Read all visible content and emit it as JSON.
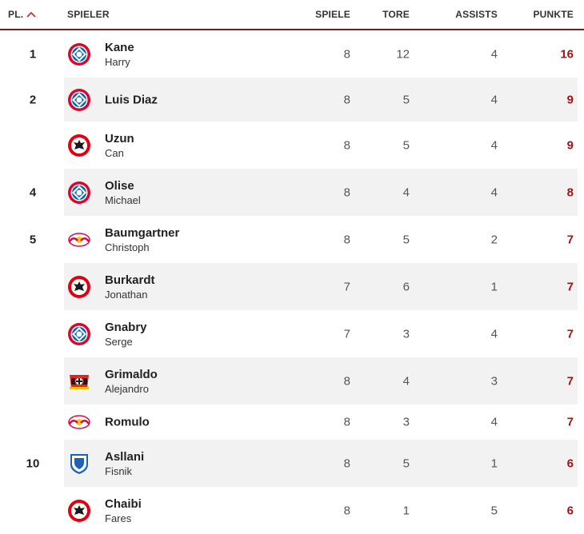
{
  "header": {
    "rank": "PL.",
    "player": "SPIELER",
    "games": "SPIELE",
    "goals": "TORE",
    "assists": "ASSISTS",
    "points": "PUNKTE"
  },
  "colors": {
    "accent": "#7a1b1b",
    "points": "#a31313",
    "fcb_red": "#dc052d",
    "fcb_blue": "#0066b2",
    "sge_red": "#e1000f",
    "rbl_red": "#dd0741",
    "b04_red": "#e32221",
    "tsg_blue": "#1c63b7"
  },
  "rows": [
    {
      "rank": "1",
      "last": "Kane",
      "first": "Harry",
      "club_icon": "fc-bayern-logo-icon",
      "games": "8",
      "goals": "12",
      "assists": "4",
      "points": "16"
    },
    {
      "rank": "2",
      "last": "Luis Diaz",
      "first": "",
      "club_icon": "fc-bayern-logo-icon",
      "games": "8",
      "goals": "5",
      "assists": "4",
      "points": "9"
    },
    {
      "rank": "",
      "last": "Uzun",
      "first": "Can",
      "club_icon": "eintracht-frankfurt-logo-icon",
      "games": "8",
      "goals": "5",
      "assists": "4",
      "points": "9"
    },
    {
      "rank": "4",
      "last": "Olise",
      "first": "Michael",
      "club_icon": "fc-bayern-logo-icon",
      "games": "8",
      "goals": "4",
      "assists": "4",
      "points": "8"
    },
    {
      "rank": "5",
      "last": "Baumgartner",
      "first": "Christoph",
      "club_icon": "rb-leipzig-logo-icon",
      "games": "8",
      "goals": "5",
      "assists": "2",
      "points": "7"
    },
    {
      "rank": "",
      "last": "Burkardt",
      "first": "Jonathan",
      "club_icon": "eintracht-frankfurt-logo-icon",
      "games": "7",
      "goals": "6",
      "assists": "1",
      "points": "7"
    },
    {
      "rank": "",
      "last": "Gnabry",
      "first": "Serge",
      "club_icon": "fc-bayern-logo-icon",
      "games": "7",
      "goals": "3",
      "assists": "4",
      "points": "7"
    },
    {
      "rank": "",
      "last": "Grimaldo",
      "first": "Alejandro",
      "club_icon": "bayer-leverkusen-logo-icon",
      "games": "8",
      "goals": "4",
      "assists": "3",
      "points": "7"
    },
    {
      "rank": "",
      "last": "Romulo",
      "first": "",
      "club_icon": "rb-leipzig-logo-icon",
      "games": "8",
      "goals": "3",
      "assists": "4",
      "points": "7"
    },
    {
      "rank": "10",
      "last": "Asllani",
      "first": "Fisnik",
      "club_icon": "hoffenheim-logo-icon",
      "games": "8",
      "goals": "5",
      "assists": "1",
      "points": "6"
    },
    {
      "rank": "",
      "last": "Chaibi",
      "first": "Fares",
      "club_icon": "eintracht-frankfurt-logo-icon",
      "games": "8",
      "goals": "1",
      "assists": "5",
      "points": "6"
    }
  ]
}
